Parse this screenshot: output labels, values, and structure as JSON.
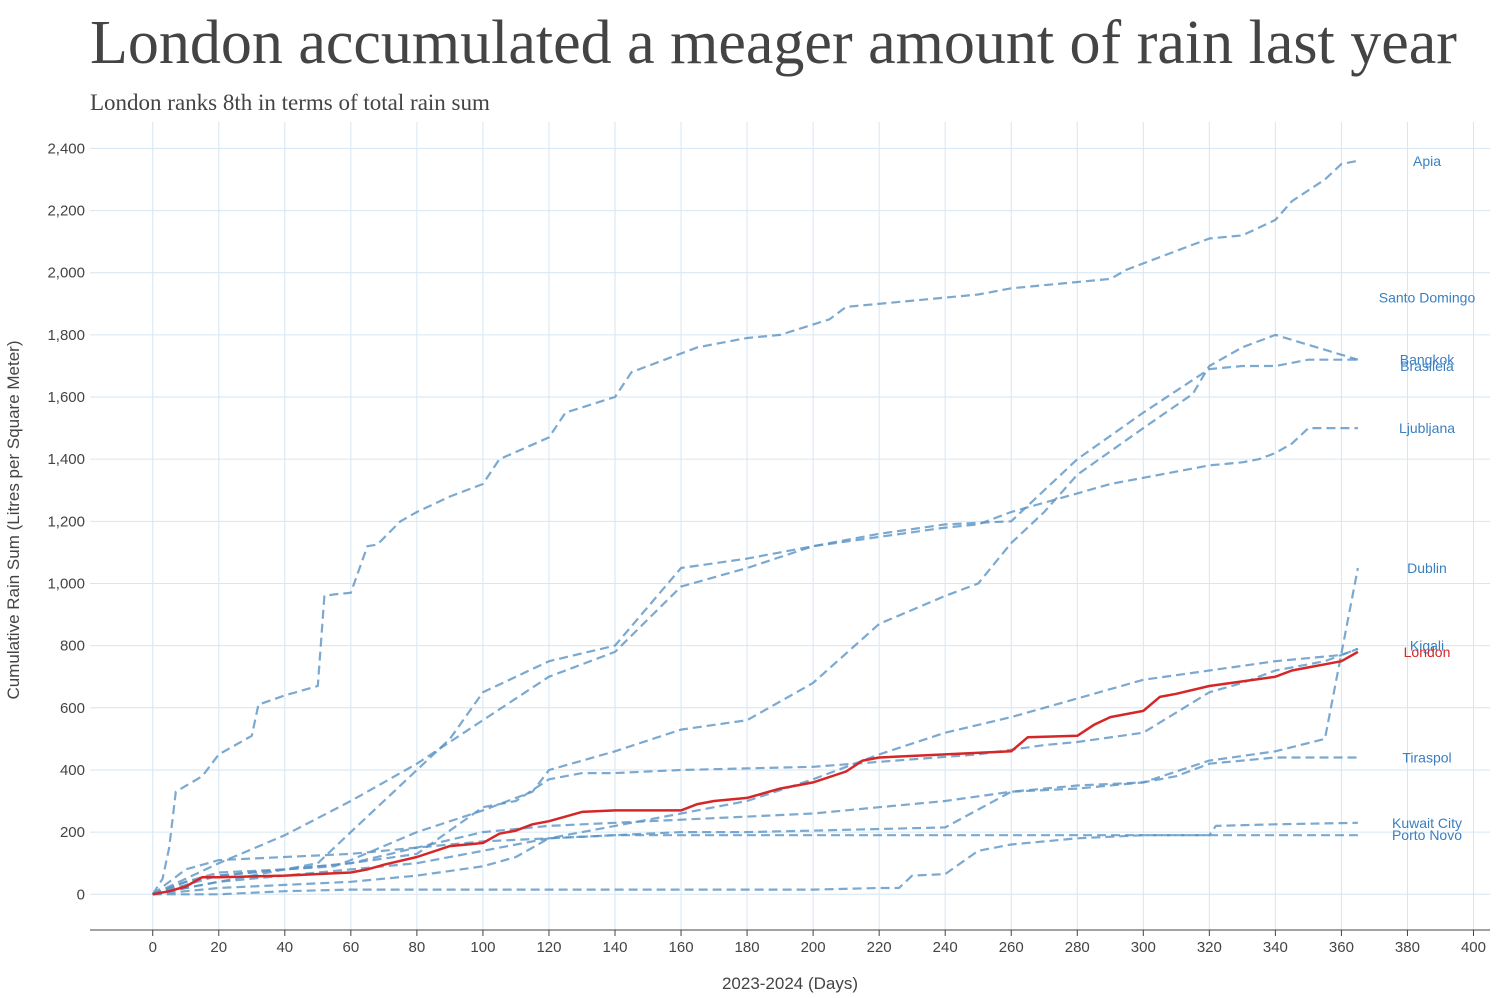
{
  "colors": {
    "highlight": "#d62728",
    "other": "#5a94c4",
    "label_other": "#3a7fc0",
    "grid": "#d6e6f2"
  },
  "chart_data": {
    "type": "line",
    "title": "London accumulated a meager amount of rain last year",
    "subtitle": "London ranks 8th in terms of total rain sum",
    "xlabel": "2023-2024 (Days)",
    "ylabel": "Cumulative Rain Sum (Litres per Square Meter)",
    "xlim": [
      -19,
      405
    ],
    "ylim": [
      -115,
      2485
    ],
    "x_ticks": [
      0,
      20,
      40,
      60,
      80,
      100,
      120,
      140,
      160,
      180,
      200,
      220,
      240,
      260,
      280,
      300,
      320,
      340,
      360,
      380,
      400
    ],
    "x_tick_labels": [
      "0",
      "20",
      "40",
      "60",
      "80",
      "100",
      "120",
      "140",
      "160",
      "180",
      "200",
      "220",
      "240",
      "260",
      "280",
      "300",
      "320",
      "340",
      "360",
      "380",
      "400"
    ],
    "y_ticks": [
      0,
      200,
      400,
      600,
      800,
      1000,
      1200,
      1400,
      1600,
      1800,
      2000,
      2200,
      2400
    ],
    "y_tick_labels": [
      "0",
      "200",
      "400",
      "600",
      "800",
      "1,000",
      "1,200",
      "1,400",
      "1,600",
      "1,800",
      "2,000",
      "2,200",
      "2,400"
    ],
    "grid": true,
    "legend": "direct labels at right end of lines",
    "highlight": "London",
    "series": [
      {
        "name": "Apia",
        "label_y": 2360,
        "x": [
          0,
          3,
          5,
          7,
          15,
          20,
          30,
          32,
          40,
          50,
          52,
          55,
          60,
          65,
          68,
          75,
          80,
          90,
          100,
          105,
          120,
          125,
          140,
          145,
          160,
          165,
          180,
          190,
          205,
          210,
          250,
          260,
          290,
          295,
          320,
          330,
          340,
          345,
          355,
          360,
          365
        ],
        "values": [
          0,
          50,
          150,
          330,
          380,
          450,
          510,
          610,
          640,
          670,
          960,
          965,
          970,
          1120,
          1125,
          1200,
          1230,
          1280,
          1320,
          1400,
          1470,
          1550,
          1600,
          1680,
          1740,
          1760,
          1790,
          1800,
          1850,
          1890,
          1930,
          1950,
          1980,
          2010,
          2110,
          2120,
          2170,
          2230,
          2300,
          2350,
          2360
        ]
      },
      {
        "name": "Santo Domingo",
        "label_y": 1920,
        "x": [
          0,
          10,
          20,
          40,
          60,
          80,
          100,
          110,
          120,
          130,
          140,
          150,
          160,
          200,
          250,
          270,
          280,
          300,
          320,
          330,
          340,
          355,
          365
        ],
        "values": [
          0,
          40,
          70,
          80,
          100,
          130,
          280,
          300,
          370,
          390,
          390,
          395,
          400,
          410,
          450,
          480,
          490,
          520,
          650,
          680,
          720,
          750,
          790
        ]
      },
      {
        "name": "Bangkok",
        "label_y": 1720,
        "x": [
          0,
          10,
          20,
          40,
          55,
          60,
          80,
          100,
          115,
          120,
          140,
          160,
          180,
          200,
          220,
          240,
          250,
          260,
          270,
          280,
          300,
          315,
          320,
          330,
          340,
          365
        ],
        "values": [
          0,
          40,
          60,
          80,
          90,
          110,
          200,
          270,
          330,
          400,
          460,
          530,
          560,
          680,
          870,
          960,
          1000,
          1130,
          1230,
          1350,
          1500,
          1610,
          1700,
          1760,
          1800,
          1720
        ]
      },
      {
        "name": "Brasileia",
        "label_y": 1700,
        "x": [
          0,
          10,
          20,
          40,
          60,
          80,
          100,
          120,
          140,
          160,
          180,
          200,
          220,
          240,
          260,
          280,
          300,
          310,
          320,
          330,
          340,
          350,
          365
        ],
        "values": [
          0,
          50,
          100,
          190,
          300,
          420,
          560,
          700,
          780,
          990,
          1050,
          1120,
          1160,
          1190,
          1200,
          1400,
          1550,
          1620,
          1690,
          1700,
          1700,
          1720,
          1720
        ]
      },
      {
        "name": "Ljubljana",
        "label_y": 1500,
        "x": [
          0,
          10,
          20,
          40,
          50,
          60,
          70,
          80,
          90,
          100,
          120,
          140,
          160,
          180,
          190,
          200,
          220,
          240,
          250,
          260,
          270,
          280,
          290,
          300,
          310,
          320,
          330,
          335,
          340,
          345,
          350,
          365
        ],
        "values": [
          0,
          20,
          40,
          80,
          100,
          200,
          300,
          400,
          500,
          650,
          750,
          800,
          1050,
          1080,
          1100,
          1120,
          1150,
          1180,
          1190,
          1230,
          1260,
          1290,
          1320,
          1340,
          1360,
          1380,
          1390,
          1400,
          1420,
          1450,
          1500,
          1500
        ]
      },
      {
        "name": "Dublin",
        "label_y": 1050,
        "x": [
          0,
          10,
          20,
          40,
          60,
          80,
          100,
          120,
          140,
          160,
          180,
          200,
          220,
          240,
          260,
          280,
          300,
          320,
          340,
          355,
          365
        ],
        "values": [
          0,
          30,
          60,
          80,
          100,
          150,
          200,
          220,
          230,
          240,
          250,
          260,
          280,
          300,
          330,
          340,
          360,
          430,
          460,
          500,
          1050
        ]
      },
      {
        "name": "Kigali",
        "label_y": 800,
        "x": [
          0,
          10,
          20,
          40,
          60,
          80,
          100,
          120,
          140,
          160,
          180,
          200,
          220,
          240,
          260,
          280,
          300,
          320,
          340,
          360,
          365
        ],
        "values": [
          0,
          20,
          40,
          60,
          80,
          100,
          140,
          180,
          220,
          260,
          300,
          370,
          450,
          520,
          570,
          630,
          690,
          720,
          750,
          770,
          790
        ]
      },
      {
        "name": "London",
        "label_y": 780,
        "x": [
          0,
          5,
          10,
          15,
          20,
          40,
          60,
          65,
          70,
          80,
          90,
          100,
          105,
          110,
          115,
          120,
          130,
          140,
          150,
          160,
          165,
          170,
          180,
          190,
          200,
          210,
          215,
          220,
          240,
          260,
          265,
          280,
          285,
          290,
          300,
          305,
          310,
          320,
          330,
          340,
          345,
          350,
          355,
          360,
          365
        ],
        "values": [
          0,
          10,
          25,
          55,
          55,
          60,
          70,
          80,
          95,
          120,
          155,
          165,
          195,
          205,
          225,
          235,
          265,
          270,
          270,
          270,
          290,
          300,
          310,
          340,
          360,
          395,
          430,
          440,
          450,
          460,
          505,
          510,
          545,
          570,
          590,
          635,
          645,
          670,
          685,
          700,
          720,
          730,
          740,
          750,
          780
        ]
      },
      {
        "name": "Tiraspol",
        "label_y": 440,
        "x": [
          0,
          10,
          20,
          40,
          60,
          80,
          100,
          120,
          140,
          160,
          180,
          200,
          220,
          240,
          260,
          280,
          300,
          310,
          320,
          340,
          365
        ],
        "values": [
          0,
          80,
          110,
          120,
          130,
          150,
          170,
          180,
          190,
          200,
          200,
          205,
          210,
          215,
          330,
          350,
          360,
          380,
          420,
          440,
          440
        ]
      },
      {
        "name": "Kuwait City",
        "label_y": 230,
        "x": [
          0,
          10,
          20,
          40,
          60,
          80,
          100,
          120,
          140,
          160,
          180,
          200,
          220,
          226,
          230,
          240,
          250,
          260,
          280,
          300,
          320,
          322,
          340,
          365
        ],
        "values": [
          0,
          0,
          0,
          10,
          15,
          15,
          15,
          15,
          15,
          15,
          15,
          15,
          20,
          20,
          60,
          65,
          140,
          160,
          180,
          190,
          190,
          220,
          225,
          230
        ]
      },
      {
        "name": "Porto Novo",
        "label_y": 190,
        "x": [
          0,
          10,
          20,
          40,
          60,
          80,
          100,
          110,
          120,
          140,
          160,
          200,
          240,
          280,
          320,
          365
        ],
        "values": [
          0,
          10,
          20,
          30,
          40,
          60,
          90,
          120,
          180,
          190,
          190,
          190,
          190,
          190,
          190,
          190
        ]
      }
    ]
  }
}
